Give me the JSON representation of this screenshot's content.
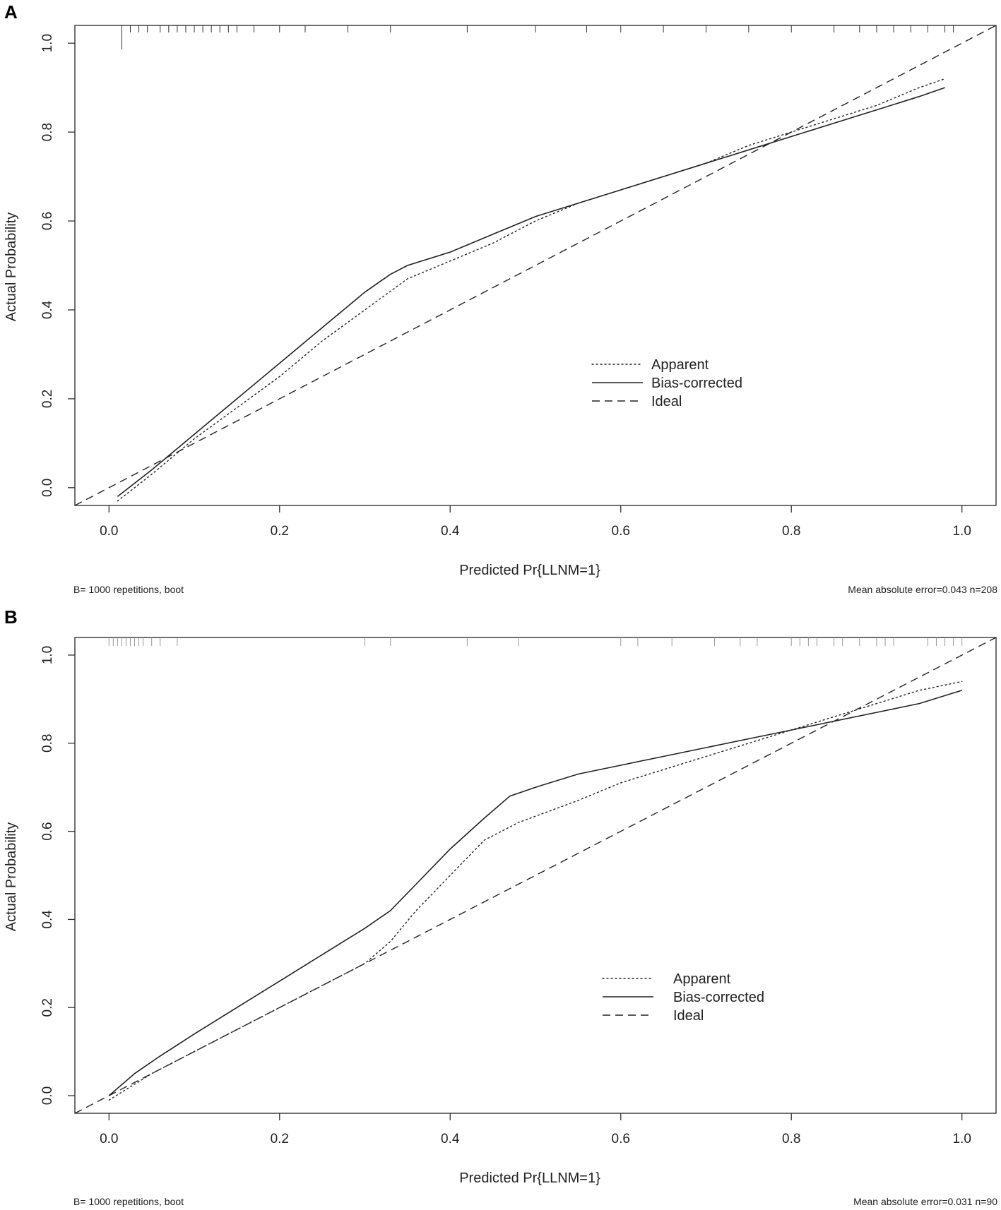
{
  "panels": [
    {
      "label": "A",
      "footer_left": "B= 1000 repetitions, boot",
      "footer_right": "Mean absolute error=0.043 n=208"
    },
    {
      "label": "B",
      "footer_left": "B= 1000 repetitions, boot",
      "footer_right": "Mean absolute error=0.031 n=90"
    }
  ],
  "chart_data": [
    {
      "type": "line",
      "title": "A",
      "xlabel": "Predicted Pr{LLNM=1}",
      "ylabel": "Actual Probability",
      "xlim": [
        -0.04,
        1.04
      ],
      "ylim": [
        -0.04,
        1.04
      ],
      "xticks": [
        0.0,
        0.2,
        0.4,
        0.6,
        0.8,
        1.0
      ],
      "yticks": [
        0.0,
        0.2,
        0.4,
        0.6,
        0.8,
        1.0
      ],
      "xtick_labels": [
        "0.0",
        "0.2",
        "0.4",
        "0.6",
        "0.8",
        "1.0"
      ],
      "ytick_labels": [
        "0.0",
        "0.2",
        "0.4",
        "0.6",
        "0.8",
        "1.0"
      ],
      "legend": {
        "position": "center-right",
        "entries": [
          "Apparent",
          "Bias-corrected",
          "Ideal"
        ]
      },
      "series": [
        {
          "name": "Apparent",
          "style": "dotted",
          "x": [
            0.01,
            0.05,
            0.1,
            0.15,
            0.2,
            0.25,
            0.3,
            0.35,
            0.4,
            0.45,
            0.5,
            0.55,
            0.6,
            0.65,
            0.7,
            0.75,
            0.8,
            0.85,
            0.9,
            0.95,
            0.98
          ],
          "y": [
            -0.03,
            0.03,
            0.11,
            0.18,
            0.25,
            0.33,
            0.4,
            0.47,
            0.51,
            0.55,
            0.6,
            0.64,
            0.67,
            0.7,
            0.73,
            0.77,
            0.8,
            0.83,
            0.86,
            0.9,
            0.92
          ]
        },
        {
          "name": "Bias-corrected",
          "style": "solid",
          "x": [
            0.01,
            0.05,
            0.1,
            0.15,
            0.2,
            0.25,
            0.3,
            0.33,
            0.35,
            0.4,
            0.45,
            0.5,
            0.55,
            0.6,
            0.65,
            0.7,
            0.75,
            0.8,
            0.85,
            0.9,
            0.95,
            0.98
          ],
          "y": [
            -0.02,
            0.04,
            0.12,
            0.2,
            0.28,
            0.36,
            0.44,
            0.48,
            0.5,
            0.53,
            0.57,
            0.61,
            0.64,
            0.67,
            0.7,
            0.73,
            0.76,
            0.79,
            0.82,
            0.85,
            0.88,
            0.9
          ]
        },
        {
          "name": "Ideal",
          "style": "dashed",
          "x": [
            -0.04,
            1.04
          ],
          "y": [
            -0.04,
            1.04
          ]
        }
      ],
      "rug_top": [
        0.015,
        0.025,
        0.035,
        0.045,
        0.06,
        0.07,
        0.08,
        0.09,
        0.1,
        0.11,
        0.12,
        0.13,
        0.14,
        0.15,
        0.17,
        0.2,
        0.23,
        0.28,
        0.33,
        0.42,
        0.5,
        0.56,
        0.6,
        0.65,
        0.7,
        0.75,
        0.8,
        0.85,
        0.88,
        0.9,
        0.92,
        0.94,
        0.96,
        0.98,
        0.99
      ],
      "rug_bottom": [],
      "footer_left": "B= 1000 repetitions, boot",
      "footer_right": "Mean absolute error=0.043 n=208"
    },
    {
      "type": "line",
      "title": "B",
      "xlabel": "Predicted Pr{LLNM=1}",
      "ylabel": "Actual Probability",
      "xlim": [
        -0.04,
        1.04
      ],
      "ylim": [
        -0.04,
        1.04
      ],
      "xticks": [
        0.0,
        0.2,
        0.4,
        0.6,
        0.8,
        1.0
      ],
      "yticks": [
        0.0,
        0.2,
        0.4,
        0.6,
        0.8,
        1.0
      ],
      "xtick_labels": [
        "0.0",
        "0.2",
        "0.4",
        "0.6",
        "0.8",
        "1.0"
      ],
      "ytick_labels": [
        "0.0",
        "0.2",
        "0.4",
        "0.6",
        "0.8",
        "1.0"
      ],
      "legend": {
        "position": "center-right",
        "entries": [
          "Apparent",
          "Bias-corrected",
          "Ideal"
        ]
      },
      "series": [
        {
          "name": "Apparent",
          "style": "dotted",
          "x": [
            0.0,
            0.05,
            0.1,
            0.15,
            0.2,
            0.25,
            0.3,
            0.33,
            0.36,
            0.4,
            0.44,
            0.48,
            0.55,
            0.6,
            0.65,
            0.7,
            0.75,
            0.8,
            0.85,
            0.9,
            0.95,
            1.0
          ],
          "y": [
            -0.01,
            0.05,
            0.1,
            0.15,
            0.2,
            0.25,
            0.3,
            0.35,
            0.42,
            0.5,
            0.58,
            0.62,
            0.67,
            0.71,
            0.74,
            0.77,
            0.8,
            0.83,
            0.86,
            0.89,
            0.92,
            0.94
          ]
        },
        {
          "name": "Bias-corrected",
          "style": "solid",
          "x": [
            0.0,
            0.03,
            0.06,
            0.1,
            0.15,
            0.2,
            0.25,
            0.3,
            0.33,
            0.36,
            0.4,
            0.44,
            0.47,
            0.5,
            0.55,
            0.6,
            0.65,
            0.7,
            0.75,
            0.8,
            0.85,
            0.9,
            0.95,
            1.0
          ],
          "y": [
            0.0,
            0.05,
            0.09,
            0.14,
            0.2,
            0.26,
            0.32,
            0.38,
            0.42,
            0.48,
            0.56,
            0.63,
            0.68,
            0.7,
            0.73,
            0.75,
            0.77,
            0.79,
            0.81,
            0.83,
            0.85,
            0.87,
            0.89,
            0.92
          ]
        },
        {
          "name": "Ideal",
          "style": "dashed",
          "x": [
            -0.04,
            1.04
          ],
          "y": [
            -0.04,
            1.04
          ]
        }
      ],
      "rug_top": [
        0.0,
        0.005,
        0.01,
        0.015,
        0.02,
        0.025,
        0.03,
        0.035,
        0.04,
        0.05,
        0.06,
        0.08,
        0.3,
        0.33,
        0.42,
        0.48,
        0.6,
        0.62,
        0.66,
        0.71,
        0.74,
        0.76,
        0.8,
        0.81,
        0.82,
        0.83,
        0.85,
        0.86,
        0.88,
        0.9,
        0.91,
        0.92,
        0.96,
        0.97,
        0.98,
        0.99,
        1.0
      ],
      "rug_bottom": [],
      "footer_left": "B= 1000 repetitions, boot",
      "footer_right": "Mean absolute error=0.031 n=90"
    }
  ]
}
